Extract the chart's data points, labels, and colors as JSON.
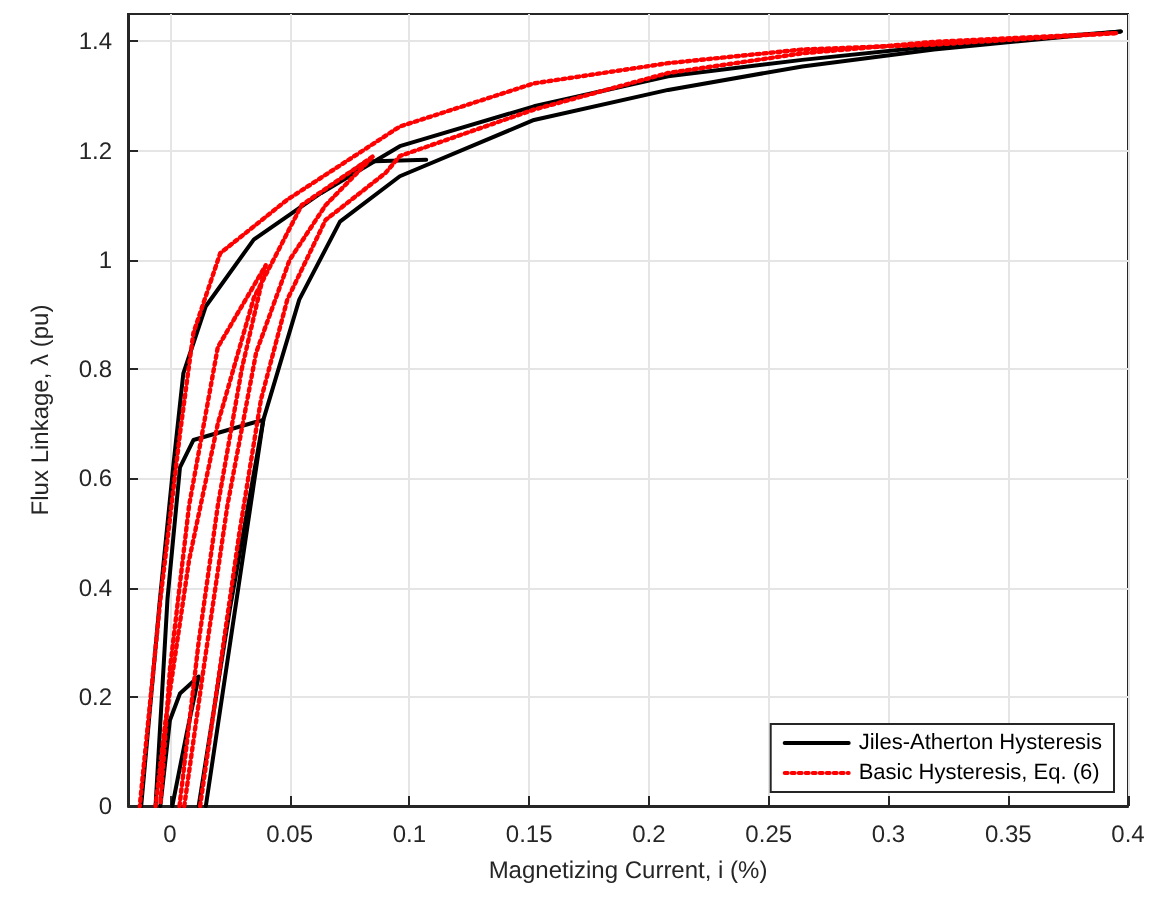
{
  "chart_data": {
    "type": "line",
    "xlabel": "Magnetizing Current, i (%)",
    "ylabel": "Flux Linkage, λ (pu)",
    "xlim": [
      -0.0175,
      0.4
    ],
    "ylim": [
      0,
      1.45
    ],
    "xticks": [
      0,
      0.05,
      0.1,
      0.15,
      0.2,
      0.25,
      0.3,
      0.35,
      0.4
    ],
    "yticks": [
      0,
      0.2,
      0.4,
      0.6,
      0.8,
      1,
      1.2,
      1.4
    ],
    "grid": true,
    "legend": "bottom right",
    "marker": "none",
    "series": [
      {
        "name": "Jiles-Atherton Hysteresis",
        "color": "#000000",
        "line_style": "solid",
        "x": [
          0.015,
          0.039,
          0.054,
          0.071,
          0.096,
          0.152,
          0.208,
          0.264,
          0.319,
          0.375,
          0.397
        ],
        "values": [
          0,
          0.707,
          0.927,
          1.07,
          1.153,
          1.256,
          1.311,
          1.354,
          1.385,
          1.409,
          1.418
        ]
      },
      {
        "color": "#000000",
        "line_style": "solid",
        "x": [
          0.397,
          0.319,
          0.264,
          0.208,
          0.152,
          0.096,
          0.063,
          0.035,
          0.015,
          0.0056,
          0.0014,
          -0.0042,
          -0.012
        ],
        "values": [
          1.418,
          1.391,
          1.366,
          1.336,
          1.281,
          1.208,
          1.122,
          1.037,
          0.915,
          0.792,
          0.622,
          0.377,
          0
        ]
      },
      {
        "color": "#000000",
        "line_style": "solid",
        "x": [
          0.012,
          0.025,
          0.039,
          0.0098,
          0.0042,
          -0.001,
          -0.006
        ],
        "values": [
          0,
          0.36,
          0.707,
          0.67,
          0.62,
          0.38,
          0
        ]
      },
      {
        "color": "#000000",
        "line_style": "solid",
        "x": [
          0.001,
          0.007,
          0.012,
          0.0042,
          0,
          -0.004
        ],
        "values": [
          0,
          0.133,
          0.237,
          0.206,
          0.157,
          0
        ]
      },
      {
        "color": "#000000",
        "line_style": "solid",
        "x": [
          0.063,
          0.082,
          0.107
        ],
        "values": [
          1.122,
          1.18,
          1.183
        ]
      },
      {
        "name": "Basic Hysteresis, Eq. (6)",
        "color": "#ff0000",
        "line_style": "dotted",
        "x": [
          0.0126,
          0.021,
          0.029,
          0.038,
          0.049,
          0.065,
          0.09,
          0.096,
          0.152,
          0.208,
          0.264,
          0.319,
          0.395
        ],
        "values": [
          0,
          0.256,
          0.5,
          0.744,
          0.927,
          1.073,
          1.159,
          1.19,
          1.275,
          1.342,
          1.378,
          1.399,
          1.415
        ]
      },
      {
        "color": "#ff0000",
        "line_style": "dotted",
        "x": [
          0.395,
          0.319,
          0.264,
          0.208,
          0.152,
          0.096,
          0.049,
          0.021,
          0.0098,
          0.0042,
          -0.004,
          -0.0126
        ],
        "values": [
          1.415,
          1.394,
          1.385,
          1.36,
          1.323,
          1.244,
          1.11,
          1.012,
          0.866,
          0.682,
          0.377,
          0
        ]
      },
      {
        "color": "#ff0000",
        "line_style": "dotted",
        "x": [
          0.006,
          0.014,
          0.024,
          0.036,
          0.05,
          0.065,
          0.085,
          0.055,
          0.035,
          0.02,
          0.008,
          -0.002,
          -0.006
        ],
        "values": [
          0,
          0.25,
          0.55,
          0.83,
          1.0,
          1.1,
          1.19,
          1.1,
          0.93,
          0.7,
          0.45,
          0.15,
          0
        ]
      },
      {
        "color": "#ff0000",
        "line_style": "dotted",
        "x": [
          0.004,
          0.012,
          0.02,
          0.03,
          0.04,
          0.02,
          0.008,
          0.0,
          -0.004
        ],
        "values": [
          0,
          0.3,
          0.55,
          0.8,
          0.99,
          0.84,
          0.55,
          0.25,
          0
        ]
      }
    ]
  }
}
